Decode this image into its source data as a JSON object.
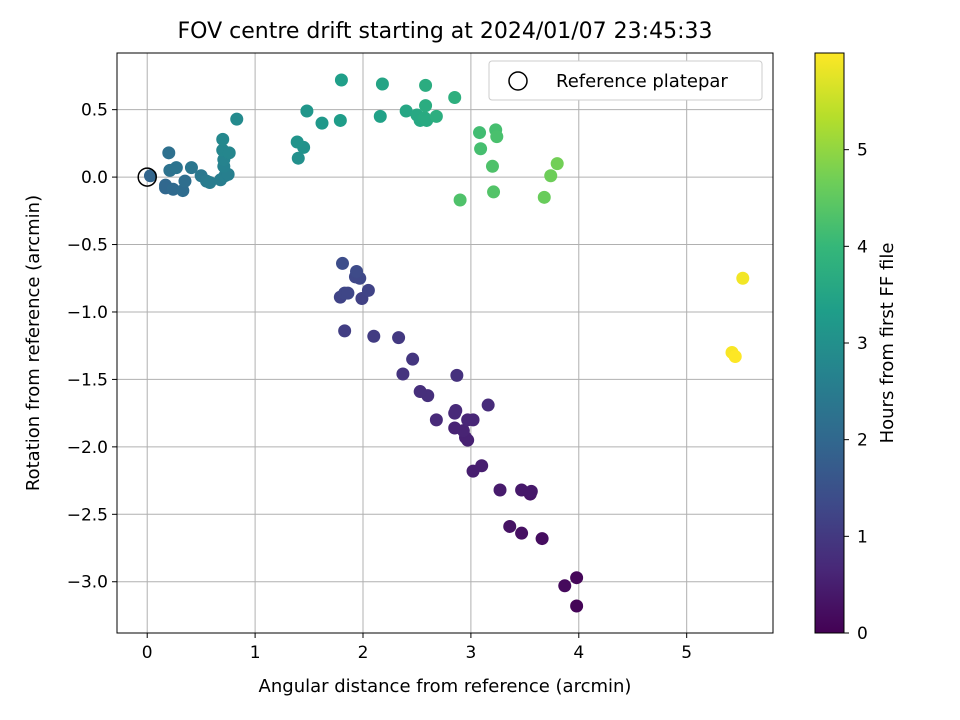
{
  "chart_data": {
    "type": "scatter",
    "title": "FOV centre drift starting at 2024/01/07 23:45:33",
    "xlabel": "Angular distance from reference (arcmin)",
    "ylabel": "Rotation from reference (arcmin)",
    "xlim": [
      -0.28,
      5.8
    ],
    "ylim": [
      -3.38,
      0.92
    ],
    "xticks": [
      0,
      1,
      2,
      3,
      4,
      5
    ],
    "xtick_labels": [
      "0",
      "1",
      "2",
      "3",
      "4",
      "5"
    ],
    "yticks": [
      -3.0,
      -2.5,
      -2.0,
      -1.5,
      -1.0,
      -0.5,
      0.0,
      0.5
    ],
    "ytick_labels": [
      "−3.0",
      "−2.5",
      "−2.0",
      "−1.5",
      "−1.0",
      "−0.5",
      "0.0",
      "0.5"
    ],
    "grid": true,
    "legend": {
      "position": "top-right",
      "entries": [
        {
          "label": "Reference platepar",
          "marker": "open-circle"
        }
      ]
    },
    "reference_point": {
      "x": 0,
      "y": 0
    },
    "colormap": "viridis",
    "colorbar": {
      "label": "Hours from first FF file",
      "range": [
        0,
        6.0
      ],
      "ticks": [
        0,
        1,
        2,
        3,
        4,
        5
      ],
      "tick_labels": [
        "0",
        "1",
        "2",
        "3",
        "4",
        "5"
      ],
      "stops": [
        "#440154",
        "#482878",
        "#3e4a89",
        "#31688e",
        "#26828e",
        "#1f9e89",
        "#35b779",
        "#6ece58",
        "#b5de2b",
        "#fde725"
      ]
    },
    "points": [
      {
        "x": 3.98,
        "y": -3.18,
        "h": 0.05
      },
      {
        "x": 3.98,
        "y": -2.97,
        "h": 0.1
      },
      {
        "x": 3.87,
        "y": -3.03,
        "h": 0.15
      },
      {
        "x": 3.66,
        "y": -2.68,
        "h": 0.2
      },
      {
        "x": 3.47,
        "y": -2.64,
        "h": 0.25
      },
      {
        "x": 3.36,
        "y": -2.59,
        "h": 0.3
      },
      {
        "x": 3.55,
        "y": -2.35,
        "h": 0.35
      },
      {
        "x": 3.56,
        "y": -2.33,
        "h": 0.4
      },
      {
        "x": 3.47,
        "y": -2.32,
        "h": 0.4
      },
      {
        "x": 3.27,
        "y": -2.32,
        "h": 0.45
      },
      {
        "x": 3.1,
        "y": -2.14,
        "h": 0.5
      },
      {
        "x": 3.02,
        "y": -2.18,
        "h": 0.5
      },
      {
        "x": 2.97,
        "y": -1.95,
        "h": 0.55
      },
      {
        "x": 2.95,
        "y": -1.93,
        "h": 0.55
      },
      {
        "x": 2.93,
        "y": -1.88,
        "h": 0.6
      },
      {
        "x": 2.85,
        "y": -1.86,
        "h": 0.6
      },
      {
        "x": 2.97,
        "y": -1.8,
        "h": 0.65
      },
      {
        "x": 3.02,
        "y": -1.8,
        "h": 0.65
      },
      {
        "x": 2.85,
        "y": -1.75,
        "h": 0.7
      },
      {
        "x": 2.86,
        "y": -1.73,
        "h": 0.7
      },
      {
        "x": 2.68,
        "y": -1.8,
        "h": 0.7
      },
      {
        "x": 3.16,
        "y": -1.69,
        "h": 0.75
      },
      {
        "x": 2.6,
        "y": -1.62,
        "h": 0.8
      },
      {
        "x": 2.53,
        "y": -1.59,
        "h": 0.8
      },
      {
        "x": 2.87,
        "y": -1.47,
        "h": 0.85
      },
      {
        "x": 2.37,
        "y": -1.46,
        "h": 0.9
      },
      {
        "x": 2.46,
        "y": -1.35,
        "h": 0.95
      },
      {
        "x": 2.33,
        "y": -1.19,
        "h": 1.0
      },
      {
        "x": 2.1,
        "y": -1.18,
        "h": 1.05
      },
      {
        "x": 1.83,
        "y": -1.14,
        "h": 1.1
      },
      {
        "x": 1.99,
        "y": -0.9,
        "h": 1.15
      },
      {
        "x": 1.79,
        "y": -0.89,
        "h": 1.2
      },
      {
        "x": 2.05,
        "y": -0.84,
        "h": 1.2
      },
      {
        "x": 1.83,
        "y": -0.86,
        "h": 1.25
      },
      {
        "x": 1.86,
        "y": -0.86,
        "h": 1.25
      },
      {
        "x": 1.97,
        "y": -0.75,
        "h": 1.3
      },
      {
        "x": 1.93,
        "y": -0.74,
        "h": 1.3
      },
      {
        "x": 1.94,
        "y": -0.7,
        "h": 1.35
      },
      {
        "x": 1.81,
        "y": -0.64,
        "h": 1.4
      },
      {
        "x": 0.03,
        "y": 0.01,
        "h": 1.95
      },
      {
        "x": 0.17,
        "y": -0.06,
        "h": 2.0
      },
      {
        "x": 0.17,
        "y": -0.08,
        "h": 2.0
      },
      {
        "x": 0.24,
        "y": -0.09,
        "h": 2.05
      },
      {
        "x": 0.33,
        "y": -0.1,
        "h": 2.1
      },
      {
        "x": 0.35,
        "y": -0.03,
        "h": 2.15
      },
      {
        "x": 0.2,
        "y": 0.18,
        "h": 2.2
      },
      {
        "x": 0.21,
        "y": 0.05,
        "h": 2.25
      },
      {
        "x": 0.27,
        "y": 0.07,
        "h": 2.3
      },
      {
        "x": 0.41,
        "y": 0.07,
        "h": 2.35
      },
      {
        "x": 0.5,
        "y": 0.01,
        "h": 2.4
      },
      {
        "x": 0.55,
        "y": -0.03,
        "h": 2.45
      },
      {
        "x": 0.58,
        "y": -0.04,
        "h": 2.5
      },
      {
        "x": 0.68,
        "y": -0.02,
        "h": 2.55
      },
      {
        "x": 0.72,
        "y": 0.01,
        "h": 2.6
      },
      {
        "x": 0.75,
        "y": 0.02,
        "h": 2.6
      },
      {
        "x": 0.71,
        "y": 0.08,
        "h": 2.65
      },
      {
        "x": 0.71,
        "y": 0.13,
        "h": 2.7
      },
      {
        "x": 0.7,
        "y": 0.2,
        "h": 2.75
      },
      {
        "x": 0.76,
        "y": 0.18,
        "h": 2.75
      },
      {
        "x": 0.7,
        "y": 0.28,
        "h": 2.8
      },
      {
        "x": 0.83,
        "y": 0.43,
        "h": 2.85
      },
      {
        "x": 1.4,
        "y": 0.14,
        "h": 3.0
      },
      {
        "x": 1.45,
        "y": 0.22,
        "h": 3.05
      },
      {
        "x": 1.39,
        "y": 0.26,
        "h": 3.1
      },
      {
        "x": 1.48,
        "y": 0.49,
        "h": 3.15
      },
      {
        "x": 1.62,
        "y": 0.4,
        "h": 3.2
      },
      {
        "x": 1.79,
        "y": 0.42,
        "h": 3.3
      },
      {
        "x": 1.8,
        "y": 0.72,
        "h": 3.35
      },
      {
        "x": 2.16,
        "y": 0.45,
        "h": 3.4
      },
      {
        "x": 2.18,
        "y": 0.69,
        "h": 3.5
      },
      {
        "x": 2.4,
        "y": 0.49,
        "h": 3.55
      },
      {
        "x": 2.5,
        "y": 0.46,
        "h": 3.6
      },
      {
        "x": 2.53,
        "y": 0.42,
        "h": 3.6
      },
      {
        "x": 2.57,
        "y": 0.44,
        "h": 3.65
      },
      {
        "x": 2.59,
        "y": 0.42,
        "h": 3.65
      },
      {
        "x": 2.58,
        "y": 0.53,
        "h": 3.7
      },
      {
        "x": 2.58,
        "y": 0.68,
        "h": 3.7
      },
      {
        "x": 2.68,
        "y": 0.45,
        "h": 3.75
      },
      {
        "x": 2.85,
        "y": 0.59,
        "h": 3.8
      },
      {
        "x": 3.08,
        "y": 0.33,
        "h": 4.15
      },
      {
        "x": 3.09,
        "y": 0.21,
        "h": 4.2
      },
      {
        "x": 3.23,
        "y": 0.35,
        "h": 4.2
      },
      {
        "x": 3.24,
        "y": 0.3,
        "h": 4.25
      },
      {
        "x": 2.9,
        "y": -0.17,
        "h": 4.3
      },
      {
        "x": 3.2,
        "y": 0.08,
        "h": 4.3
      },
      {
        "x": 3.21,
        "y": -0.11,
        "h": 4.35
      },
      {
        "x": 3.68,
        "y": -0.15,
        "h": 4.6
      },
      {
        "x": 3.74,
        "y": 0.01,
        "h": 4.65
      },
      {
        "x": 3.8,
        "y": 0.1,
        "h": 4.7
      },
      {
        "x": 5.52,
        "y": -0.75,
        "h": 5.9
      },
      {
        "x": 5.42,
        "y": -1.3,
        "h": 5.95
      },
      {
        "x": 5.45,
        "y": -1.33,
        "h": 6.0
      }
    ]
  }
}
